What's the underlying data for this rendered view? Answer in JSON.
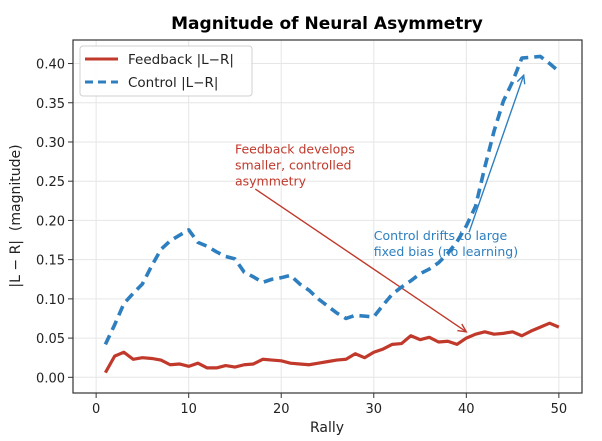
{
  "chart_data": {
    "type": "line",
    "title": "Magnitude of Neural Asymmetry",
    "xlabel": "Rally",
    "ylabel": "|L − R|  (magnitude)",
    "xlim": [
      -2.5,
      52.5
    ],
    "ylim": [
      -0.02,
      0.43
    ],
    "xticks": [
      0,
      10,
      20,
      30,
      40,
      50
    ],
    "xtick_labels": [
      "0",
      "10",
      "20",
      "30",
      "40",
      "50"
    ],
    "yticks": [
      0.0,
      0.05,
      0.1,
      0.15,
      0.2,
      0.25,
      0.3,
      0.35,
      0.4
    ],
    "ytick_labels": [
      "0.00",
      "0.05",
      "0.10",
      "0.15",
      "0.20",
      "0.25",
      "0.30",
      "0.35",
      "0.40"
    ],
    "grid": true,
    "legend_position": "top-left",
    "x": [
      1,
      2,
      3,
      4,
      5,
      6,
      7,
      8,
      9,
      10,
      11,
      12,
      13,
      14,
      15,
      16,
      17,
      18,
      19,
      20,
      21,
      22,
      23,
      24,
      25,
      26,
      27,
      28,
      29,
      30,
      31,
      32,
      33,
      34,
      35,
      36,
      37,
      38,
      39,
      40,
      41,
      42,
      43,
      44,
      45,
      46,
      47,
      48,
      49,
      50
    ],
    "series": [
      {
        "name": "Feedback |L−R|",
        "color": "#c0392b",
        "style": "solid",
        "values": [
          0.006,
          0.027,
          0.032,
          0.023,
          0.025,
          0.024,
          0.022,
          0.016,
          0.017,
          0.014,
          0.018,
          0.012,
          0.012,
          0.015,
          0.013,
          0.016,
          0.017,
          0.023,
          0.022,
          0.021,
          0.018,
          0.017,
          0.016,
          0.018,
          0.02,
          0.022,
          0.023,
          0.03,
          0.025,
          0.032,
          0.036,
          0.042,
          0.043,
          0.053,
          0.048,
          0.051,
          0.045,
          0.046,
          0.042,
          0.05,
          0.055,
          0.058,
          0.055,
          0.056,
          0.058,
          0.053,
          0.059,
          0.064,
          0.069,
          0.064
        ]
      },
      {
        "name": "Control |L−R|",
        "color": "#2e7fbf",
        "style": "dashed",
        "values": [
          0.042,
          0.067,
          0.094,
          0.107,
          0.119,
          0.142,
          0.163,
          0.174,
          0.181,
          0.188,
          0.172,
          0.167,
          0.16,
          0.154,
          0.151,
          0.134,
          0.128,
          0.121,
          0.125,
          0.127,
          0.13,
          0.119,
          0.111,
          0.1,
          0.091,
          0.082,
          0.075,
          0.079,
          0.078,
          0.077,
          0.092,
          0.106,
          0.115,
          0.123,
          0.132,
          0.138,
          0.146,
          0.158,
          0.173,
          0.193,
          0.218,
          0.268,
          0.314,
          0.352,
          0.377,
          0.407,
          0.408,
          0.409,
          0.4,
          0.39
        ]
      }
    ],
    "annotations": [
      {
        "text_lines": [
          "Feedback develops",
          "smaller, controlled",
          "asymmetry"
        ],
        "color": "#c0392b",
        "text_at": [
          15,
          0.285
        ],
        "arrow_from": [
          17.2,
          0.24
        ],
        "arrow_to": [
          40,
          0.058
        ]
      },
      {
        "text_lines": [
          "Control drifts to large",
          "fixed bias (no learning)"
        ],
        "color": "#2e7fbf",
        "text_at": [
          30,
          0.175
        ],
        "arrow_from": [
          40.3,
          0.185
        ],
        "arrow_to": [
          46.2,
          0.385
        ]
      }
    ]
  }
}
